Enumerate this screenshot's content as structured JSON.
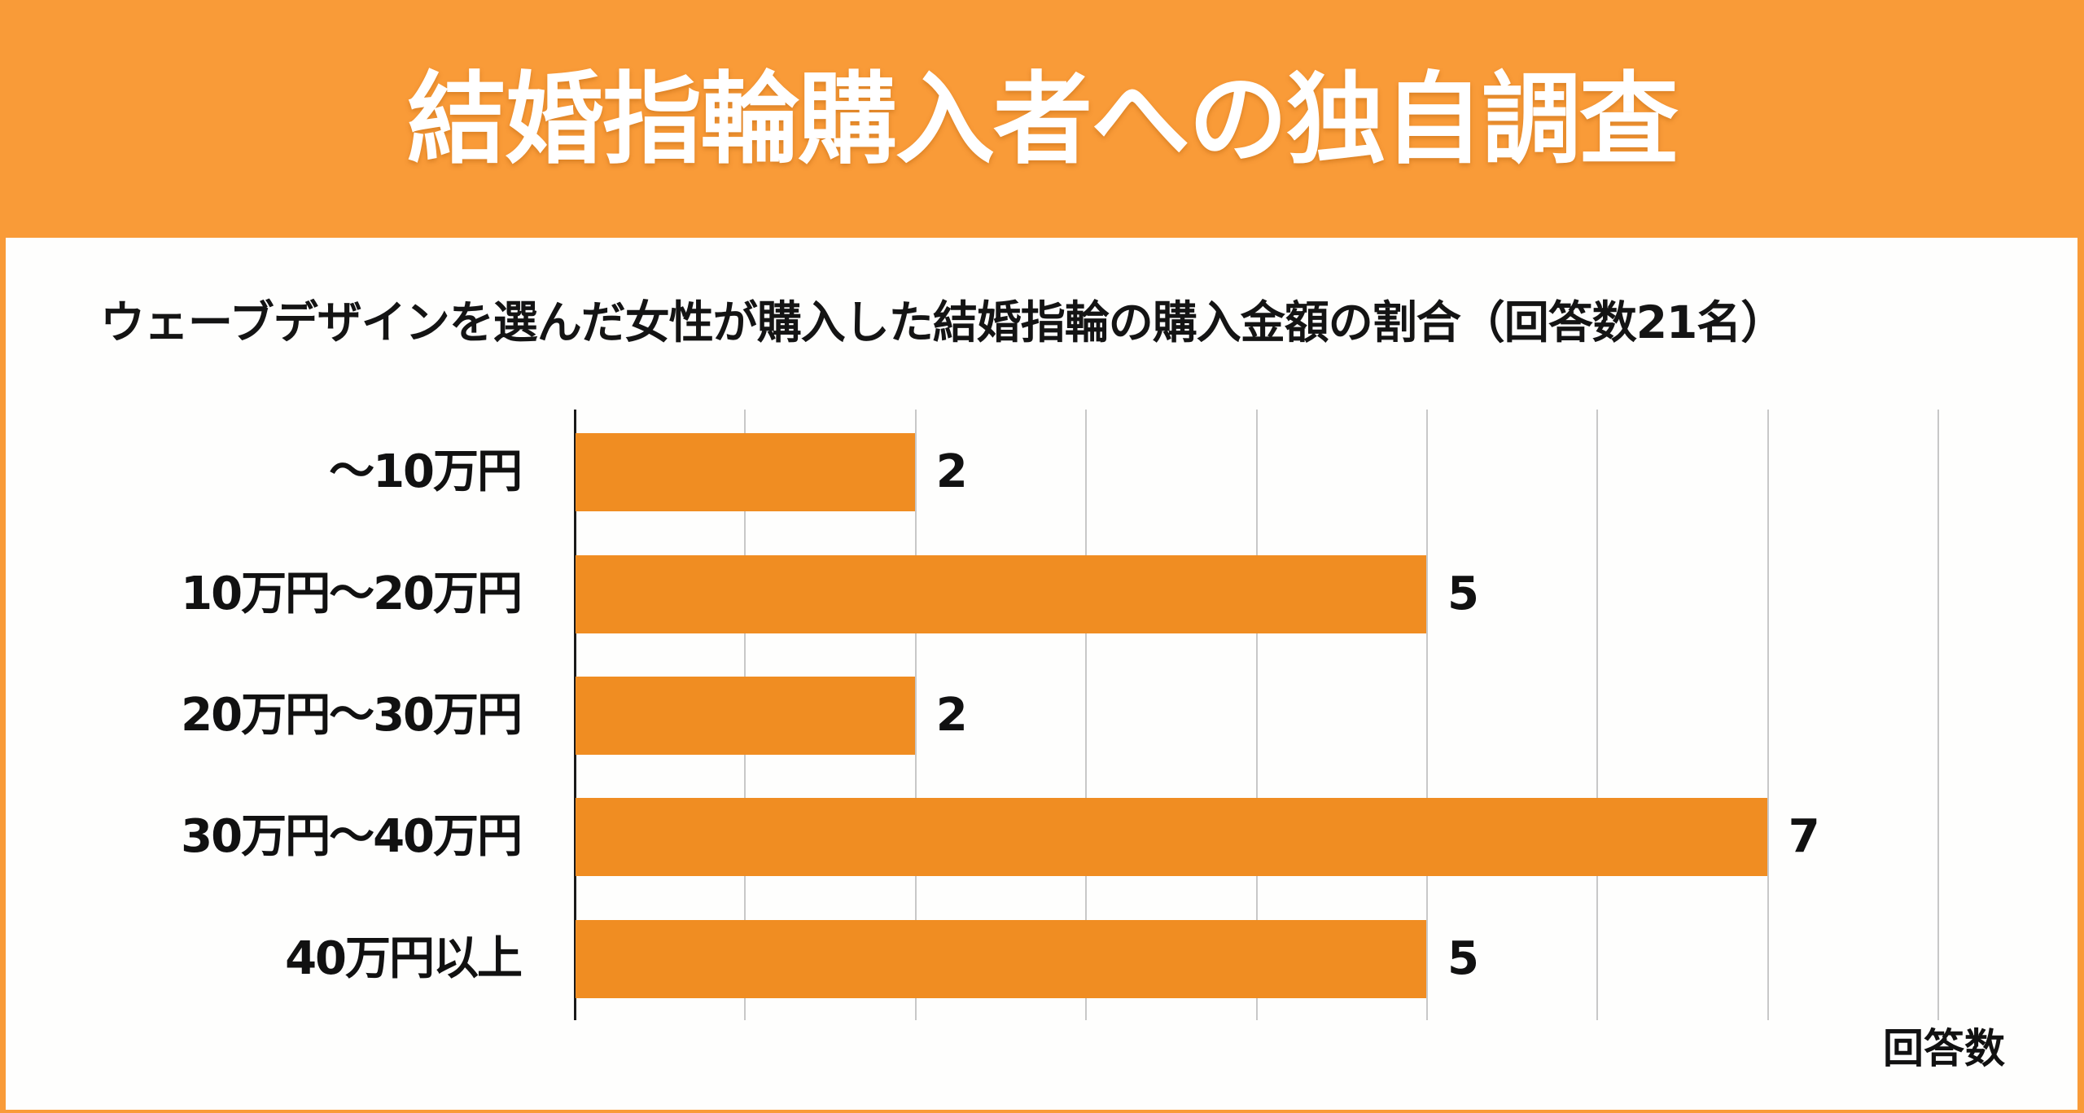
{
  "header": {
    "title": "結婚指輪購入者への独自調査"
  },
  "colors": {
    "header_bg": "#F99B38",
    "bar": "#F08D22",
    "panel_bg": "#FEFEFD",
    "grid": "#C8C8C8"
  },
  "chart": {
    "subtitle": "ウェーブデザインを選んだ女性が購入した結婚指輪の購入金額の割合（回答数21名）",
    "xlabel": "回答数",
    "categories": [
      "〜10万円",
      "10万円〜20万円",
      "20万円〜30万円",
      "30万円〜40万円",
      "40万円以上"
    ],
    "value_labels": [
      "2",
      "5",
      "2",
      "7",
      "5"
    ]
  },
  "chart_data": {
    "type": "bar",
    "orientation": "horizontal",
    "title": "ウェーブデザインを選んだ女性が購入した結婚指輪の購入金額の割合（回答数21名）",
    "categories": [
      "〜10万円",
      "10万円〜20万円",
      "20万円〜30万円",
      "30万円〜40万円",
      "40万円以上"
    ],
    "values": [
      2,
      5,
      2,
      7,
      5
    ],
    "xlabel": "回答数",
    "ylabel": "",
    "xlim": [
      0,
      8
    ],
    "grid": true,
    "data_labels": true,
    "tick_labels_shown": false
  }
}
